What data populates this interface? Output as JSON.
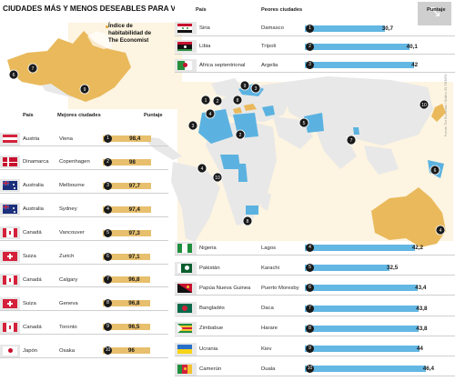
{
  "title": "CIUDADES MÁS Y MENOS DESEABLES PARA VIVIR",
  "index_label": "Índice de habitabilidad de The Economist",
  "index_label_lines": [
    "Índice de",
    "habitabilidad de",
    "The Economist"
  ],
  "credit": "Fuente: The Economist / Gráfico: EL TIEMPO",
  "colors": {
    "best_bar": "#e7bf6d",
    "worst_bar": "#63b7e3",
    "rank_circle": "#1a1a1a",
    "map_land": "#e8e8e8",
    "best_country_fill": "#e9b95b",
    "worst_country_fill": "#5bb2e0",
    "map_area_tint": "#fdf4e1",
    "flag_box_bg": "#e7e7e7"
  },
  "chart_data": [
    {
      "type": "bar",
      "title": "Mejores ciudades",
      "columns": [
        "País",
        "Mejores ciudades",
        "Puntaje"
      ],
      "rows": [
        {
          "rank": "1",
          "country": "Austria",
          "city": "Viena",
          "score_text": "98,4",
          "flag": "austria-flag"
        },
        {
          "rank": "2",
          "country": "Dinamarca",
          "city": "Copenhagen",
          "score_text": "98",
          "flag": "denmark-flag"
        },
        {
          "rank": "3",
          "country": "Australia",
          "city": "Melbourne",
          "score_text": "97,7",
          "flag": "australia-flag"
        },
        {
          "rank": "4",
          "country": "Australia",
          "city": "Sydney",
          "score_text": "97,4",
          "flag": "australia-flag"
        },
        {
          "rank": "5",
          "country": "Canadá",
          "city": "Vancouver",
          "score_text": "97,3",
          "flag": "canada-flag"
        },
        {
          "rank": "6",
          "country": "Suiza",
          "city": "Zurich",
          "score_text": "97,1",
          "flag": "switzerland-flag"
        },
        {
          "rank": "7",
          "country": "Canadá",
          "city": "Calgary",
          "score_text": "96,8",
          "flag": "canada-flag"
        },
        {
          "rank": "8",
          "country": "Suiza",
          "city": "Geneva",
          "score_text": "96,8",
          "flag": "switzerland-flag"
        },
        {
          "rank": "9",
          "country": "Canadá",
          "city": "Toronto",
          "score_text": "96,5",
          "flag": "canada-flag"
        },
        {
          "rank": "10",
          "country": "Japón",
          "city": "Osaka",
          "score_text": "96",
          "flag": "japan-flag"
        }
      ],
      "values": [
        98.4,
        98,
        97.7,
        97.4,
        97.3,
        97.1,
        96.8,
        96.8,
        96.5,
        96
      ]
    },
    {
      "type": "bar",
      "title": "Peores ciudades",
      "columns": [
        "País",
        "Peores ciudades",
        "Puntaje"
      ],
      "rows": [
        {
          "rank": "1",
          "country": "Siria",
          "city": "Damasco",
          "score_text": "30,7",
          "flag": "syria-flag"
        },
        {
          "rank": "2",
          "country": "Libia",
          "city": "Trípoli",
          "score_text": "40,1",
          "flag": "libya-flag"
        },
        {
          "rank": "3",
          "country": "África septentrional",
          "city": "Argelia",
          "score_text": "42",
          "flag": "algeria-flag"
        },
        {
          "rank": "4",
          "country": "Nigeria",
          "city": "Lagos",
          "score_text": "42,2",
          "flag": "nigeria-flag"
        },
        {
          "rank": "5",
          "country": "Pakistán",
          "city": "Karachi",
          "score_text": "32,5",
          "flag": "pakistan-flag"
        },
        {
          "rank": "6",
          "country": "Papúa Nueva Guinea",
          "city": "Puerto Moresby",
          "score_text": "43,4",
          "flag": "papua-new-guinea-flag"
        },
        {
          "rank": "7",
          "country": "Bangladés",
          "city": "Daca",
          "score_text": "43,8",
          "flag": "bangladesh-flag"
        },
        {
          "rank": "8",
          "country": "Zimbabue",
          "city": "Harare",
          "score_text": "43,8",
          "flag": "zimbabwe-flag"
        },
        {
          "rank": "9",
          "country": "Ucrania",
          "city": "Kiev",
          "score_text": "44",
          "flag": "ukraine-flag"
        },
        {
          "rank": "10",
          "country": "Camerún",
          "city": "Duala",
          "score_text": "46,4",
          "flag": "cameroon-flag"
        }
      ],
      "values": [
        30.7,
        40.1,
        42,
        42.2,
        32.5,
        43.4,
        43.8,
        43.8,
        44,
        46.4
      ]
    }
  ]
}
